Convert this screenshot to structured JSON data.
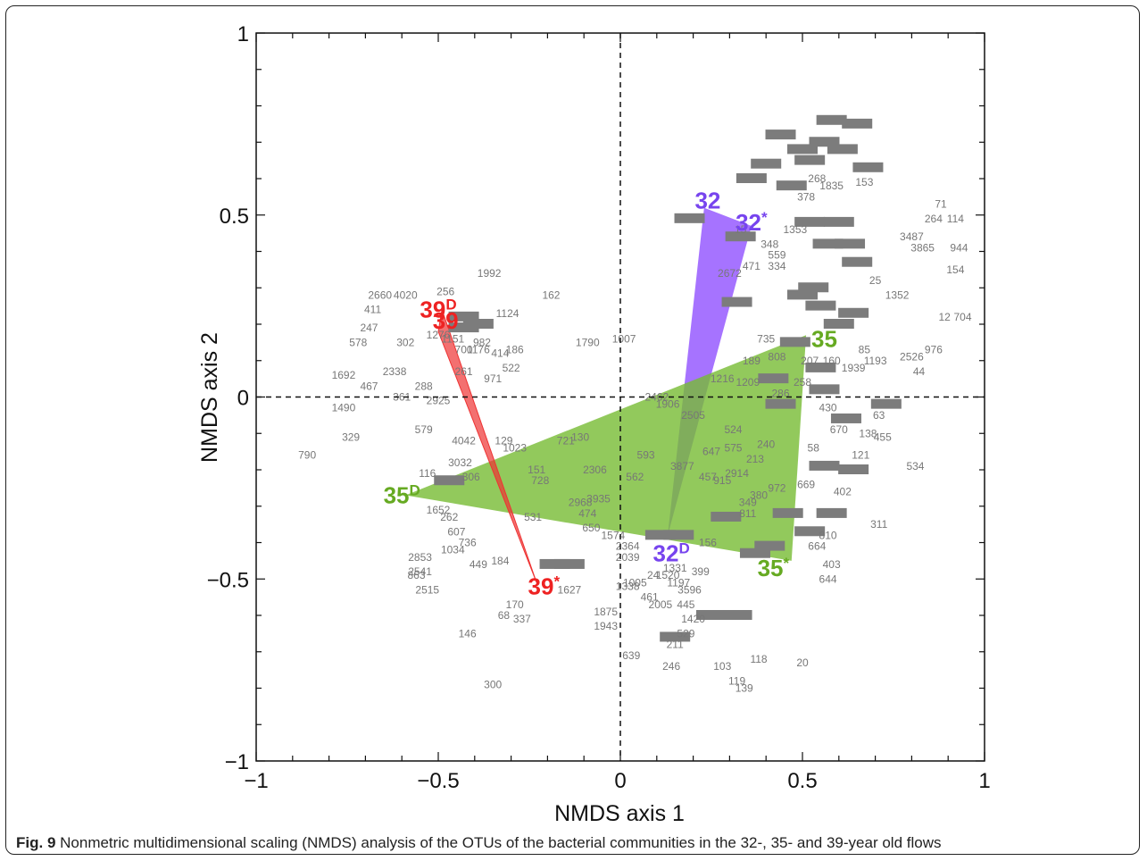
{
  "chart_data": {
    "type": "scatter",
    "title": "",
    "xlabel": "NMDS axis 1",
    "ylabel": "NMDS axis 2",
    "xlim": [
      -1,
      1
    ],
    "ylim": [
      -1,
      1
    ],
    "xticks": [
      -1,
      -0.5,
      0,
      0.5,
      1
    ],
    "yticks": [
      -1,
      -0.5,
      0,
      0.5,
      1
    ],
    "xtick_labels": [
      "−1",
      "−0.5",
      "0",
      "0.5",
      "1"
    ],
    "ytick_labels": [
      "−1",
      "−0.5",
      "0",
      "0.5",
      "1"
    ],
    "reference_lines": [
      "x=0 dashed",
      "y=0 dashed"
    ],
    "colors": {
      "flow32": "#7744ee",
      "flow35": "#66aa22",
      "flow39": "#ee2222",
      "otu": "#777777"
    },
    "polygons": [
      {
        "name": "32",
        "color": "#8844ff",
        "opacity": 0.75,
        "vertices": [
          [
            0.23,
            0.52
          ],
          [
            0.36,
            0.47
          ],
          [
            0.13,
            -0.38
          ]
        ]
      },
      {
        "name": "35",
        "color": "#77bb33",
        "opacity": 0.8,
        "vertices": [
          [
            0.51,
            0.17
          ],
          [
            0.47,
            -0.45
          ],
          [
            -0.59,
            -0.27
          ]
        ]
      },
      {
        "name": "39",
        "color": "#ee3333",
        "opacity": 0.7,
        "vertices": [
          [
            -0.49,
            0.24
          ],
          [
            -0.5,
            0.18
          ],
          [
            -0.23,
            -0.51
          ]
        ]
      }
    ],
    "flow_labels": [
      {
        "text": "32",
        "sup": "",
        "x": 0.24,
        "y": 0.54,
        "color": "#7744ee"
      },
      {
        "text": "32",
        "sup": "*",
        "x": 0.36,
        "y": 0.48,
        "color": "#7744ee"
      },
      {
        "text": "32",
        "sup": "D",
        "x": 0.14,
        "y": -0.43,
        "color": "#7744ee"
      },
      {
        "text": "35",
        "sup": "",
        "x": 0.56,
        "y": 0.16,
        "color": "#66aa22"
      },
      {
        "text": "35",
        "sup": "*",
        "x": 0.42,
        "y": -0.47,
        "color": "#66aa22"
      },
      {
        "text": "35",
        "sup": "D",
        "x": -0.6,
        "y": -0.27,
        "color": "#66aa22"
      },
      {
        "text": "39",
        "sup": "D",
        "x": -0.5,
        "y": 0.24,
        "color": "#ee2222"
      },
      {
        "text": "39",
        "sup": "",
        "x": -0.48,
        "y": 0.21,
        "color": "#ee2222"
      },
      {
        "text": "39",
        "sup": "*",
        "x": -0.21,
        "y": -0.52,
        "color": "#ee2222"
      }
    ],
    "otu_points": [
      {
        "label": "1992",
        "x": -0.36,
        "y": 0.34
      },
      {
        "label": "162",
        "x": -0.19,
        "y": 0.28
      },
      {
        "label": "256",
        "x": -0.48,
        "y": 0.29
      },
      {
        "label": "2660",
        "x": -0.66,
        "y": 0.28
      },
      {
        "label": "4020",
        "x": -0.59,
        "y": 0.28
      },
      {
        "label": "411",
        "x": -0.68,
        "y": 0.24
      },
      {
        "label": "1124",
        "x": -0.31,
        "y": 0.23
      },
      {
        "label": "247",
        "x": -0.69,
        "y": 0.19
      },
      {
        "label": "302",
        "x": -0.59,
        "y": 0.15
      },
      {
        "label": "578",
        "x": -0.72,
        "y": 0.15
      },
      {
        "label": "1276",
        "x": -0.5,
        "y": 0.17
      },
      {
        "label": "1151",
        "x": -0.46,
        "y": 0.16
      },
      {
        "label": "982",
        "x": -0.38,
        "y": 0.15
      },
      {
        "label": "1790",
        "x": -0.09,
        "y": 0.15
      },
      {
        "label": "1007",
        "x": 0.01,
        "y": 0.16
      },
      {
        "label": "700",
        "x": -0.43,
        "y": 0.13
      },
      {
        "label": "1176",
        "x": -0.39,
        "y": 0.13
      },
      {
        "label": "186",
        "x": -0.29,
        "y": 0.13
      },
      {
        "label": "414",
        "x": -0.33,
        "y": 0.12
      },
      {
        "label": "522",
        "x": -0.3,
        "y": 0.08
      },
      {
        "label": "261",
        "x": -0.43,
        "y": 0.07
      },
      {
        "label": "971",
        "x": -0.35,
        "y": 0.05
      },
      {
        "label": "1692",
        "x": -0.76,
        "y": 0.06
      },
      {
        "label": "2338",
        "x": -0.62,
        "y": 0.07
      },
      {
        "label": "467",
        "x": -0.69,
        "y": 0.03
      },
      {
        "label": "288",
        "x": -0.54,
        "y": 0.03
      },
      {
        "label": "361",
        "x": -0.6,
        "y": 0.0
      },
      {
        "label": "2925",
        "x": -0.5,
        "y": -0.01
      },
      {
        "label": "1490",
        "x": -0.76,
        "y": -0.03
      },
      {
        "label": "329",
        "x": -0.74,
        "y": -0.11
      },
      {
        "label": "579",
        "x": -0.54,
        "y": -0.09
      },
      {
        "label": "790",
        "x": -0.86,
        "y": -0.16
      },
      {
        "label": "4042",
        "x": -0.43,
        "y": -0.12
      },
      {
        "label": "129",
        "x": -0.32,
        "y": -0.12
      },
      {
        "label": "1023",
        "x": -0.29,
        "y": -0.14
      },
      {
        "label": "721",
        "x": -0.15,
        "y": -0.12
      },
      {
        "label": "130",
        "x": -0.11,
        "y": -0.11
      },
      {
        "label": "3032",
        "x": -0.44,
        "y": -0.18
      },
      {
        "label": "116",
        "x": -0.53,
        "y": -0.21
      },
      {
        "label": "306",
        "x": -0.41,
        "y": -0.22
      },
      {
        "label": "151",
        "x": -0.23,
        "y": -0.2
      },
      {
        "label": "728",
        "x": -0.22,
        "y": -0.23
      },
      {
        "label": "593",
        "x": 0.07,
        "y": -0.16
      },
      {
        "label": "2306",
        "x": -0.07,
        "y": -0.2
      },
      {
        "label": "562",
        "x": 0.04,
        "y": -0.22
      },
      {
        "label": "1652",
        "x": -0.5,
        "y": -0.31
      },
      {
        "label": "262",
        "x": -0.47,
        "y": -0.33
      },
      {
        "label": "531",
        "x": -0.24,
        "y": -0.33
      },
      {
        "label": "2968",
        "x": -0.11,
        "y": -0.29
      },
      {
        "label": "3935",
        "x": -0.06,
        "y": -0.28
      },
      {
        "label": "474",
        "x": -0.09,
        "y": -0.32
      },
      {
        "label": "650",
        "x": -0.08,
        "y": -0.36
      },
      {
        "label": "607",
        "x": -0.45,
        "y": -0.37
      },
      {
        "label": "736",
        "x": -0.42,
        "y": -0.4
      },
      {
        "label": "1034",
        "x": -0.46,
        "y": -0.42
      },
      {
        "label": "2853",
        "x": -0.55,
        "y": -0.44
      },
      {
        "label": "184",
        "x": -0.33,
        "y": -0.45
      },
      {
        "label": "449",
        "x": -0.39,
        "y": -0.46
      },
      {
        "label": "2541",
        "x": -0.55,
        "y": -0.48
      },
      {
        "label": "863",
        "x": -0.56,
        "y": -0.49
      },
      {
        "label": "2515",
        "x": -0.53,
        "y": -0.53
      },
      {
        "label": "1574",
        "x": -0.02,
        "y": -0.38
      },
      {
        "label": "2364",
        "x": 0.02,
        "y": -0.41
      },
      {
        "label": "2039",
        "x": 0.02,
        "y": -0.44
      },
      {
        "label": "1331",
        "x": 0.15,
        "y": -0.47
      },
      {
        "label": "399",
        "x": 0.22,
        "y": -0.48
      },
      {
        "label": "24",
        "x": 0.09,
        "y": -0.49
      },
      {
        "label": "1520",
        "x": 0.13,
        "y": -0.49
      },
      {
        "label": "1197",
        "x": 0.16,
        "y": -0.51
      },
      {
        "label": "3596",
        "x": 0.19,
        "y": -0.53
      },
      {
        "label": "1627",
        "x": -0.14,
        "y": -0.53
      },
      {
        "label": "1005",
        "x": 0.04,
        "y": -0.51
      },
      {
        "label": "1338",
        "x": 0.02,
        "y": -0.52
      },
      {
        "label": "461",
        "x": 0.08,
        "y": -0.55
      },
      {
        "label": "2005",
        "x": 0.11,
        "y": -0.57
      },
      {
        "label": "445",
        "x": 0.18,
        "y": -0.57
      },
      {
        "label": "1420",
        "x": 0.2,
        "y": -0.61
      },
      {
        "label": "170",
        "x": -0.29,
        "y": -0.57
      },
      {
        "label": "68",
        "x": -0.32,
        "y": -0.6
      },
      {
        "label": "337",
        "x": -0.27,
        "y": -0.61
      },
      {
        "label": "1875",
        "x": -0.04,
        "y": -0.59
      },
      {
        "label": "1943",
        "x": -0.04,
        "y": -0.63
      },
      {
        "label": "146",
        "x": -0.42,
        "y": -0.65
      },
      {
        "label": "529",
        "x": 0.18,
        "y": -0.65
      },
      {
        "label": "211",
        "x": 0.15,
        "y": -0.68
      },
      {
        "label": "639",
        "x": 0.03,
        "y": -0.71
      },
      {
        "label": "246",
        "x": 0.14,
        "y": -0.74
      },
      {
        "label": "103",
        "x": 0.28,
        "y": -0.74
      },
      {
        "label": "118",
        "x": 0.38,
        "y": -0.72
      },
      {
        "label": "20",
        "x": 0.5,
        "y": -0.73
      },
      {
        "label": "119",
        "x": 0.32,
        "y": -0.78
      },
      {
        "label": "139",
        "x": 0.34,
        "y": -0.8
      },
      {
        "label": "300",
        "x": -0.35,
        "y": -0.79
      },
      {
        "label": "1209",
        "x": 0.35,
        "y": 0.04
      },
      {
        "label": "1216",
        "x": 0.28,
        "y": 0.05
      },
      {
        "label": "2462",
        "x": 0.1,
        "y": 0.0
      },
      {
        "label": "1906",
        "x": 0.13,
        "y": -0.02
      },
      {
        "label": "2505",
        "x": 0.2,
        "y": -0.05
      },
      {
        "label": "524",
        "x": 0.31,
        "y": -0.09
      },
      {
        "label": "240",
        "x": 0.4,
        "y": -0.13
      },
      {
        "label": "575",
        "x": 0.31,
        "y": -0.14
      },
      {
        "label": "647",
        "x": 0.25,
        "y": -0.15
      },
      {
        "label": "213",
        "x": 0.37,
        "y": -0.17
      },
      {
        "label": "3877",
        "x": 0.17,
        "y": -0.19
      },
      {
        "label": "457",
        "x": 0.24,
        "y": -0.22
      },
      {
        "label": "2914",
        "x": 0.32,
        "y": -0.21
      },
      {
        "label": "915",
        "x": 0.28,
        "y": -0.23
      },
      {
        "label": "972",
        "x": 0.43,
        "y": -0.25
      },
      {
        "label": "380",
        "x": 0.38,
        "y": -0.27
      },
      {
        "label": "349",
        "x": 0.35,
        "y": -0.29
      },
      {
        "label": "811",
        "x": 0.35,
        "y": -0.32
      },
      {
        "label": "156",
        "x": 0.24,
        "y": -0.4
      },
      {
        "label": "669",
        "x": 0.51,
        "y": -0.24
      },
      {
        "label": "402",
        "x": 0.61,
        "y": -0.26
      },
      {
        "label": "810",
        "x": 0.57,
        "y": -0.38
      },
      {
        "label": "664",
        "x": 0.54,
        "y": -0.41
      },
      {
        "label": "403",
        "x": 0.58,
        "y": -0.46
      },
      {
        "label": "644",
        "x": 0.57,
        "y": -0.5
      },
      {
        "label": "311",
        "x": 0.71,
        "y": -0.35
      },
      {
        "label": "534",
        "x": 0.81,
        "y": -0.19
      },
      {
        "label": "58",
        "x": 0.53,
        "y": -0.14
      },
      {
        "label": "670",
        "x": 0.6,
        "y": -0.09
      },
      {
        "label": "138",
        "x": 0.68,
        "y": -0.1
      },
      {
        "label": "455",
        "x": 0.72,
        "y": -0.11
      },
      {
        "label": "121",
        "x": 0.66,
        "y": -0.16
      },
      {
        "label": "63",
        "x": 0.71,
        "y": -0.05
      },
      {
        "label": "430",
        "x": 0.57,
        "y": -0.03
      },
      {
        "label": "286",
        "x": 0.44,
        "y": 0.01
      },
      {
        "label": "258",
        "x": 0.5,
        "y": 0.04
      },
      {
        "label": "808",
        "x": 0.43,
        "y": 0.11
      },
      {
        "label": "189",
        "x": 0.36,
        "y": 0.1
      },
      {
        "label": "207",
        "x": 0.52,
        "y": 0.1
      },
      {
        "label": "160",
        "x": 0.58,
        "y": 0.1
      },
      {
        "label": "1939",
        "x": 0.64,
        "y": 0.08
      },
      {
        "label": "1193",
        "x": 0.7,
        "y": 0.1
      },
      {
        "label": "735",
        "x": 0.4,
        "y": 0.16
      },
      {
        "label": "85",
        "x": 0.67,
        "y": 0.13
      },
      {
        "label": "44",
        "x": 0.82,
        "y": 0.07
      },
      {
        "label": "2526",
        "x": 0.8,
        "y": 0.11
      },
      {
        "label": "976",
        "x": 0.86,
        "y": 0.13
      },
      {
        "label": "12",
        "x": 0.89,
        "y": 0.22
      },
      {
        "label": "704",
        "x": 0.94,
        "y": 0.22
      },
      {
        "label": "1352",
        "x": 0.76,
        "y": 0.28
      },
      {
        "label": "25",
        "x": 0.7,
        "y": 0.32
      },
      {
        "label": "154",
        "x": 0.92,
        "y": 0.35
      },
      {
        "label": "944",
        "x": 0.93,
        "y": 0.41
      },
      {
        "label": "3865",
        "x": 0.83,
        "y": 0.41
      },
      {
        "label": "3487",
        "x": 0.8,
        "y": 0.44
      },
      {
        "label": "264",
        "x": 0.86,
        "y": 0.49
      },
      {
        "label": "114",
        "x": 0.92,
        "y": 0.49
      },
      {
        "label": "71",
        "x": 0.88,
        "y": 0.53
      },
      {
        "label": "2672",
        "x": 0.3,
        "y": 0.34
      },
      {
        "label": "471",
        "x": 0.36,
        "y": 0.36
      },
      {
        "label": "334",
        "x": 0.43,
        "y": 0.36
      },
      {
        "label": "559",
        "x": 0.43,
        "y": 0.39
      },
      {
        "label": "348",
        "x": 0.41,
        "y": 0.42
      },
      {
        "label": "15",
        "x": 0.33,
        "y": 0.46
      },
      {
        "label": "378",
        "x": 0.51,
        "y": 0.55
      },
      {
        "label": "1835",
        "x": 0.58,
        "y": 0.58
      },
      {
        "label": "153",
        "x": 0.67,
        "y": 0.59
      },
      {
        "label": "268",
        "x": 0.54,
        "y": 0.6
      },
      {
        "label": "1353",
        "x": 0.48,
        "y": 0.46
      }
    ],
    "otu_clusters": [
      [
        -0.43,
        0.22
      ],
      [
        -0.43,
        0.19
      ],
      [
        -0.39,
        0.2
      ],
      [
        -0.47,
        -0.23
      ],
      [
        -0.18,
        -0.46
      ],
      [
        -0.14,
        -0.46
      ],
      [
        0.11,
        -0.38
      ],
      [
        0.16,
        -0.38
      ],
      [
        0.19,
        0.49
      ],
      [
        0.33,
        0.44
      ],
      [
        0.37,
        -0.43
      ],
      [
        0.41,
        -0.41
      ],
      [
        0.48,
        0.15
      ],
      [
        0.42,
        0.05
      ],
      [
        0.52,
        0.48
      ],
      [
        0.6,
        0.48
      ],
      [
        0.57,
        0.42
      ],
      [
        0.63,
        0.42
      ],
      [
        0.44,
        0.72
      ],
      [
        0.5,
        0.68
      ],
      [
        0.56,
        0.7
      ],
      [
        0.61,
        0.68
      ],
      [
        0.58,
        0.76
      ],
      [
        0.65,
        0.75
      ],
      [
        0.68,
        0.63
      ],
      [
        0.52,
        0.65
      ],
      [
        0.4,
        0.64
      ],
      [
        0.36,
        0.6
      ],
      [
        0.47,
        0.58
      ],
      [
        0.5,
        0.28
      ],
      [
        0.55,
        0.25
      ],
      [
        0.6,
        0.2
      ],
      [
        0.64,
        0.23
      ],
      [
        0.55,
        0.08
      ],
      [
        0.62,
        -0.06
      ],
      [
        0.64,
        -0.2
      ],
      [
        0.58,
        -0.32
      ],
      [
        0.52,
        -0.37
      ],
      [
        0.46,
        -0.32
      ],
      [
        0.29,
        -0.33
      ],
      [
        0.25,
        -0.6
      ],
      [
        0.32,
        -0.6
      ],
      [
        0.15,
        -0.66
      ],
      [
        0.65,
        0.37
      ],
      [
        0.53,
        0.3
      ],
      [
        0.56,
        0.02
      ],
      [
        0.44,
        -0.02
      ],
      [
        0.73,
        -0.02
      ],
      [
        0.56,
        -0.19
      ],
      [
        0.32,
        0.26
      ]
    ]
  },
  "caption": {
    "label": "Fig. 9",
    "text": " Nonmetric multidimensional scaling (NMDS) analysis of the OTUs of the bacterial communities in the 32-, 35- and 39-year old flows"
  }
}
